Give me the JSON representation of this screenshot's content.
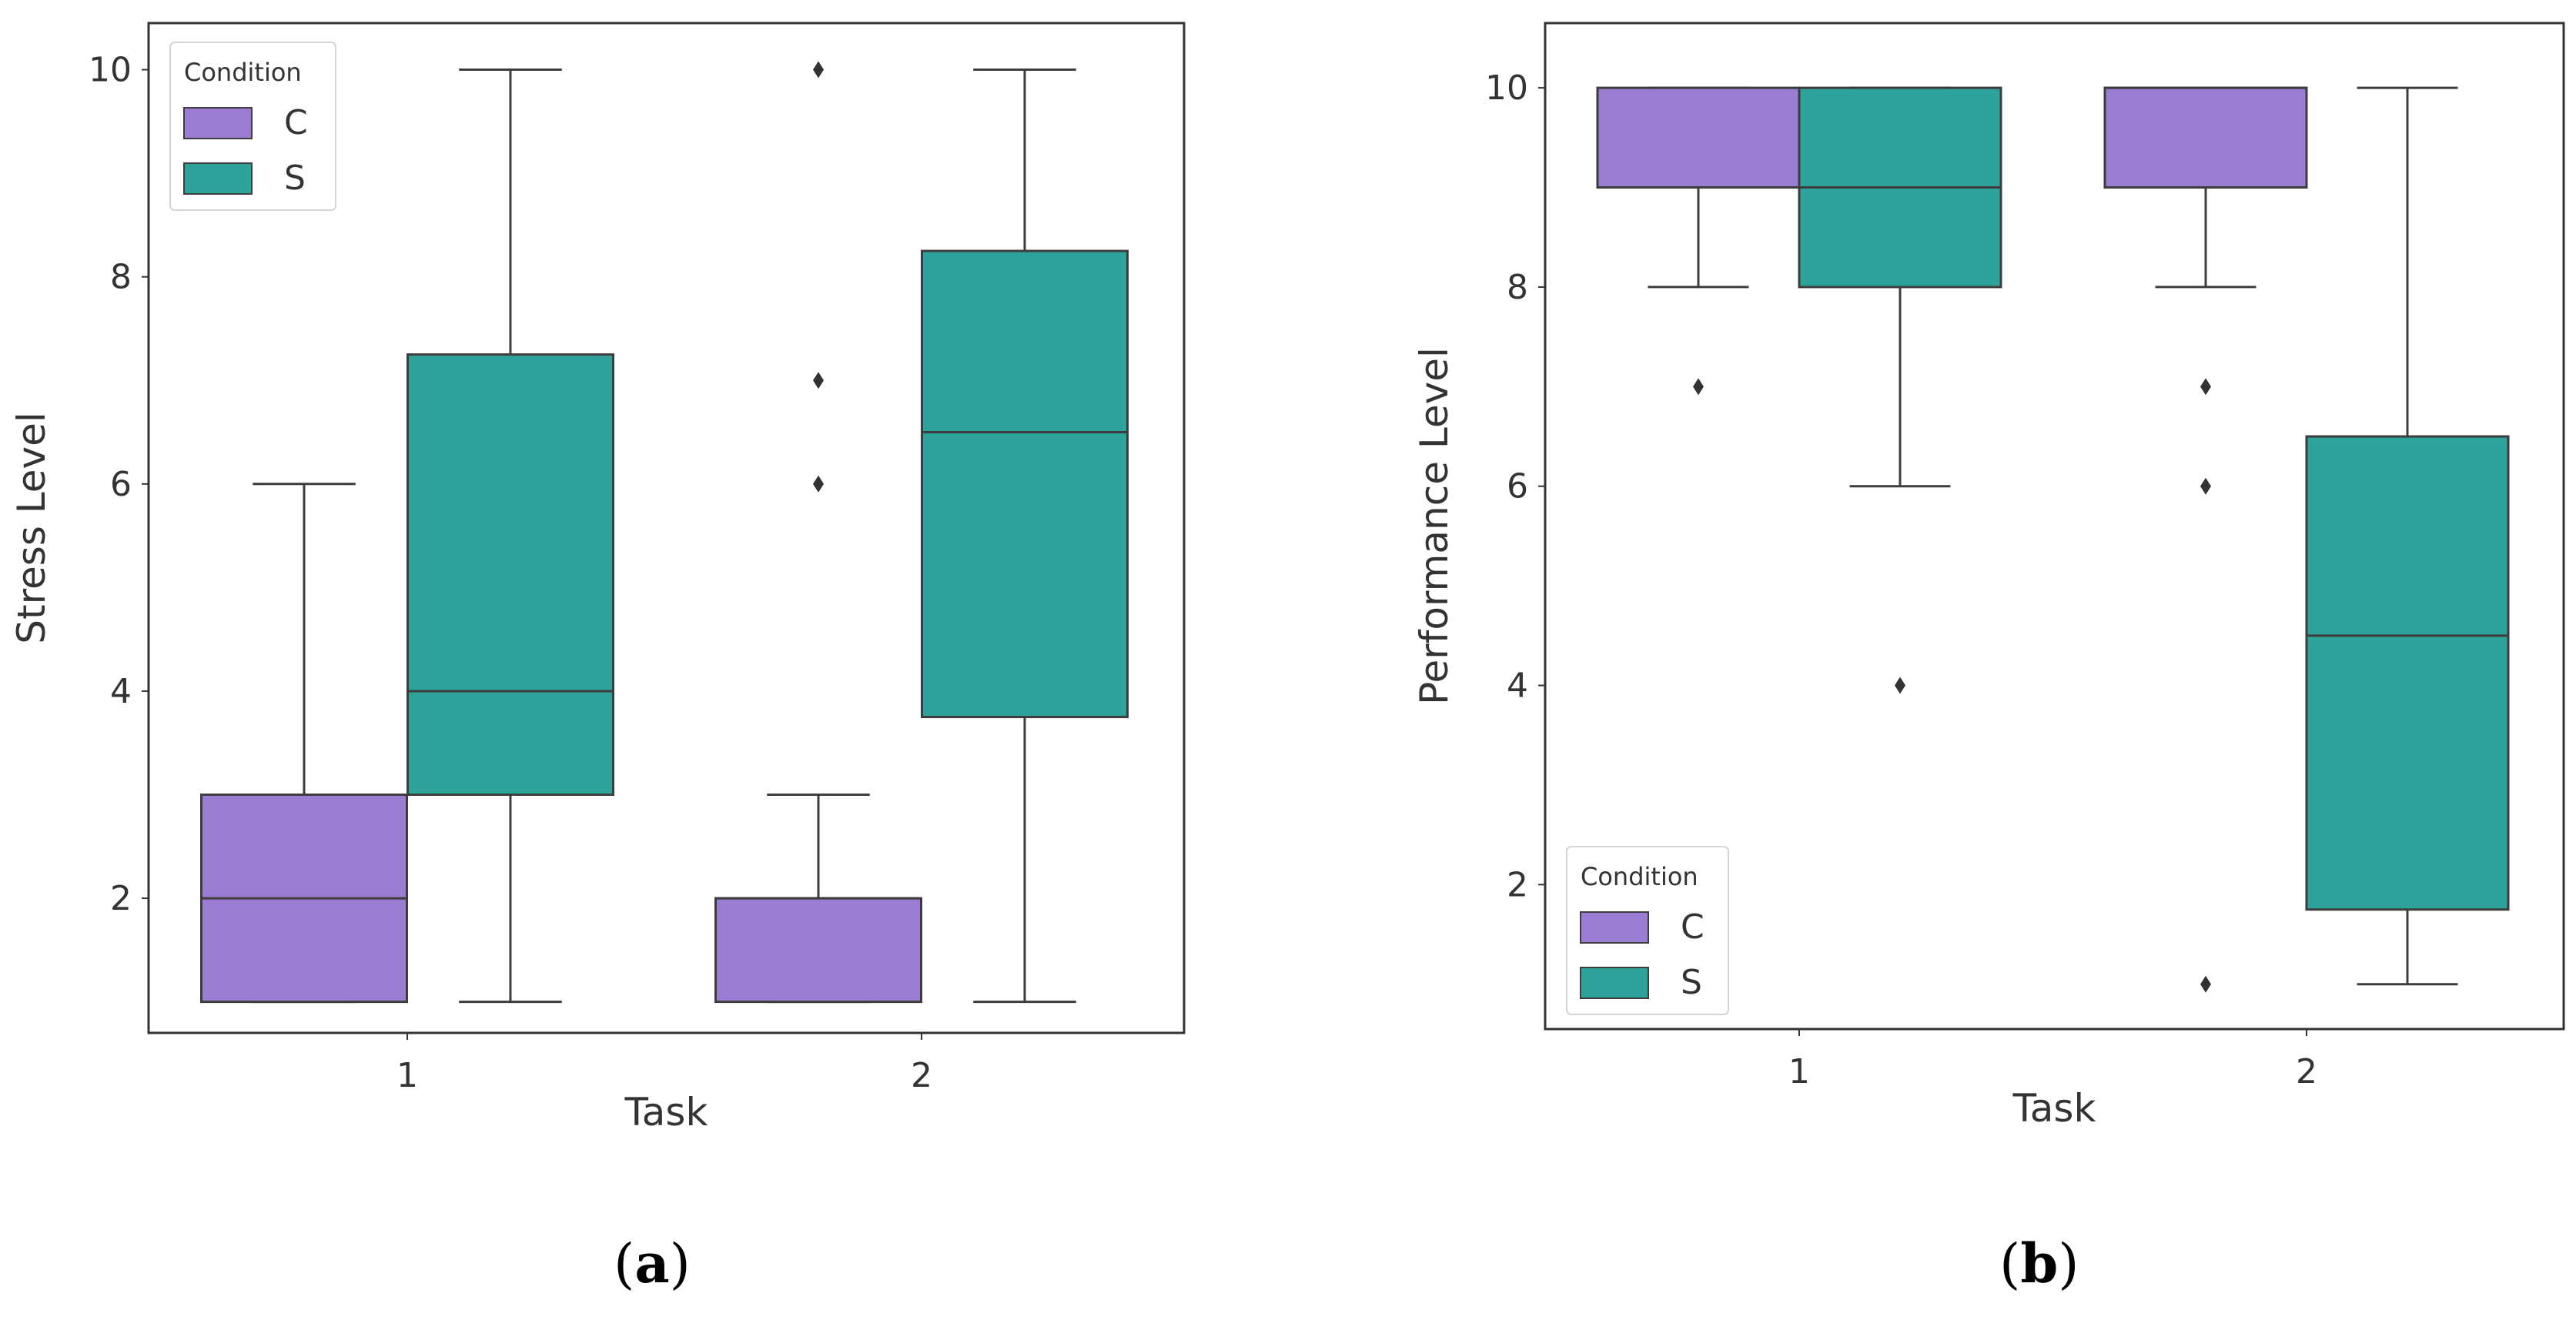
{
  "colors": {
    "C": "#9a7dd3",
    "S": "#2ea39b",
    "edge": "#3d3d3d",
    "frame": "#333333",
    "text": "#333333"
  },
  "panel_labels": [
    {
      "open": "(",
      "letter": "a",
      "close": ")"
    },
    {
      "open": "(",
      "letter": "b",
      "close": ")"
    }
  ],
  "chart_data": [
    {
      "type": "box",
      "title": "",
      "xlabel": "Task",
      "ylabel": "Stress Level",
      "categories": [
        "1",
        "2"
      ],
      "ylim": [
        0.7,
        10.45
      ],
      "yticks": [
        2,
        4,
        6,
        8,
        10
      ],
      "grid": false,
      "legend": {
        "title": "Condition",
        "entries": [
          "C",
          "S"
        ],
        "position": "upper-left"
      },
      "series": [
        {
          "name": "C",
          "boxes": [
            {
              "category": "1",
              "whisker_low": 1,
              "q1": 1,
              "median": 2,
              "q3": 3,
              "whisker_high": 6,
              "outliers": []
            },
            {
              "category": "2",
              "whisker_low": 1,
              "q1": 1,
              "median": 2,
              "q3": 2,
              "whisker_high": 3,
              "outliers": [
                6,
                7,
                10
              ]
            }
          ]
        },
        {
          "name": "S",
          "boxes": [
            {
              "category": "1",
              "whisker_low": 1,
              "q1": 3,
              "median": 4,
              "q3": 7.25,
              "whisker_high": 10,
              "outliers": []
            },
            {
              "category": "2",
              "whisker_low": 1,
              "q1": 3.75,
              "median": 6.5,
              "q3": 8.25,
              "whisker_high": 10,
              "outliers": []
            }
          ]
        }
      ]
    },
    {
      "type": "box",
      "title": "",
      "xlabel": "Task",
      "ylabel": "Performance Level",
      "categories": [
        "1",
        "2"
      ],
      "ylim": [
        0.55,
        10.65
      ],
      "yticks": [
        2,
        4,
        6,
        8,
        10
      ],
      "grid": false,
      "legend": {
        "title": "Condition",
        "entries": [
          "C",
          "S"
        ],
        "position": "lower-left"
      },
      "series": [
        {
          "name": "C",
          "boxes": [
            {
              "category": "1",
              "whisker_low": 8,
              "q1": 9,
              "median": 9,
              "q3": 10,
              "whisker_high": 10,
              "outliers": [
                7
              ]
            },
            {
              "category": "2",
              "whisker_low": 8,
              "q1": 9,
              "median": 10,
              "q3": 10,
              "whisker_high": 10,
              "outliers": [
                1,
                6,
                7
              ]
            }
          ]
        },
        {
          "name": "S",
          "boxes": [
            {
              "category": "1",
              "whisker_low": 6,
              "q1": 8,
              "median": 9,
              "q3": 10,
              "whisker_high": 10,
              "outliers": [
                4
              ]
            },
            {
              "category": "2",
              "whisker_low": 1,
              "q1": 1.75,
              "median": 4.5,
              "q3": 6.5,
              "whisker_high": 10,
              "outliers": []
            }
          ]
        }
      ]
    }
  ]
}
